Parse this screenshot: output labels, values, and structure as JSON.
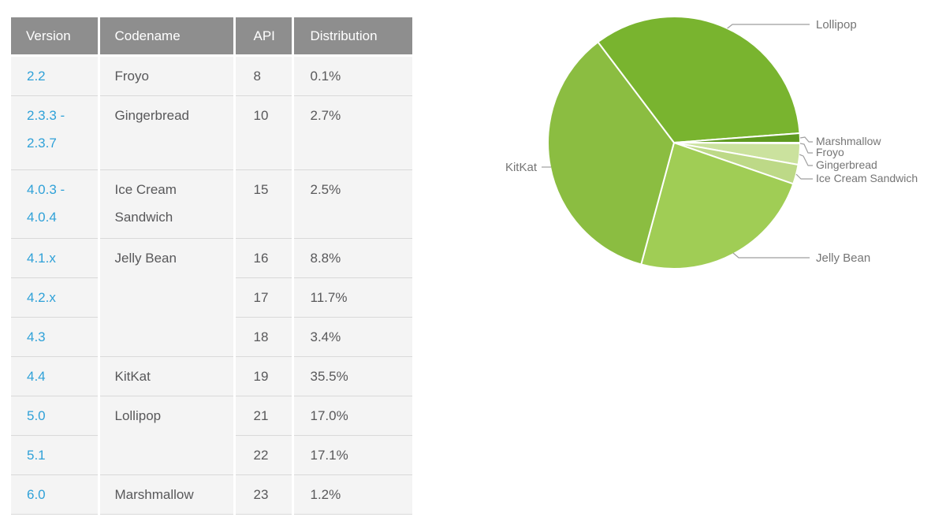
{
  "page": {
    "background": "#ffffff"
  },
  "table": {
    "headers": [
      "Version",
      "Codename",
      "API",
      "Distribution"
    ],
    "header_bg": "#8e8e8e",
    "row_bg": "#f4f4f4",
    "version_link_color": "#2fa1d8",
    "text_color": "#58585a",
    "rows": [
      {
        "version": "2.2",
        "codename": "Froyo",
        "api": "8",
        "distribution": "0.1%"
      },
      {
        "version": "2.3.3 - 2.3.7",
        "codename": "Gingerbread",
        "api": "10",
        "distribution": "2.7%"
      },
      {
        "version": "4.0.3 - 4.0.4",
        "codename": "Ice Cream Sandwich",
        "api": "15",
        "distribution": "2.5%"
      },
      {
        "version": "4.1.x",
        "codename": "Jelly Bean",
        "api": "16",
        "distribution": "8.8%"
      },
      {
        "version": "4.2.x",
        "api": "17",
        "distribution": "11.7%"
      },
      {
        "version": "4.3",
        "api": "18",
        "distribution": "3.4%"
      },
      {
        "version": "4.4",
        "codename": "KitKat",
        "api": "19",
        "distribution": "35.5%"
      },
      {
        "version": "5.0",
        "codename": "Lollipop",
        "api": "21",
        "distribution": "17.0%"
      },
      {
        "version": "5.1",
        "api": "22",
        "distribution": "17.1%"
      },
      {
        "version": "6.0",
        "codename": "Marshmallow",
        "api": "23",
        "distribution": "1.2%"
      }
    ]
  },
  "chart_data": {
    "type": "pie",
    "labels": [
      "Froyo",
      "Gingerbread",
      "Ice Cream Sandwich",
      "Jelly Bean",
      "KitKat",
      "Lollipop",
      "Marshmallow"
    ],
    "values": [
      0.1,
      2.7,
      2.5,
      23.9,
      35.5,
      34.1,
      1.2
    ],
    "colors": [
      "#dcebc3",
      "#cbe29e",
      "#bdd987",
      "#a0cd55",
      "#8bbd41",
      "#79b42f",
      "#5f9a20"
    ],
    "start_angle_deg_clockwise_from_east": 0,
    "direction": "clockwise",
    "slice_separator_color": "#ffffff",
    "label_color": "#757575",
    "leader_line_color": "#9e9e9e",
    "legend": "none"
  }
}
